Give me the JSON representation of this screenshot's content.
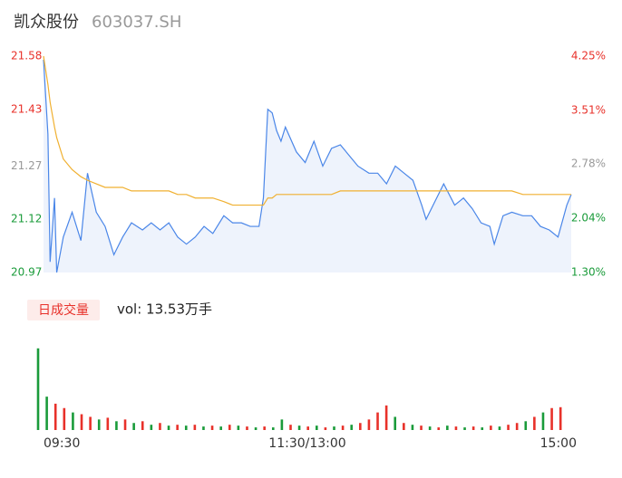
{
  "chart_data": [
    {
      "type": "line",
      "title": "凯众股份",
      "subtitle": "603037.SH",
      "x": [
        0,
        2,
        3,
        5,
        6,
        9,
        13,
        17,
        20,
        24,
        28,
        32,
        36,
        40,
        45,
        49,
        53,
        57,
        61,
        65,
        69,
        73,
        77,
        82,
        86,
        90,
        94,
        98,
        100,
        102,
        104,
        106,
        108,
        110,
        115,
        119,
        123,
        127,
        131,
        135,
        139,
        143,
        148,
        152,
        156,
        160,
        164,
        168,
        172,
        174,
        178,
        182,
        187,
        191,
        195,
        199,
        203,
        205,
        209,
        213,
        218,
        222,
        226,
        230,
        234,
        238,
        240
      ],
      "xlim": [
        0,
        240
      ],
      "series": [
        {
          "name": "price",
          "color": "#4a86e8",
          "values": [
            21.57,
            21.36,
            21.0,
            21.18,
            20.97,
            21.07,
            21.14,
            21.06,
            21.25,
            21.14,
            21.1,
            21.02,
            21.07,
            21.11,
            21.09,
            21.11,
            21.09,
            21.11,
            21.07,
            21.05,
            21.07,
            21.1,
            21.08,
            21.13,
            21.11,
            21.11,
            21.1,
            21.1,
            21.18,
            21.43,
            21.42,
            21.37,
            21.34,
            21.38,
            21.31,
            21.28,
            21.34,
            21.27,
            21.32,
            21.33,
            21.3,
            21.27,
            21.25,
            21.25,
            21.22,
            21.27,
            21.25,
            21.23,
            21.16,
            21.12,
            21.17,
            21.22,
            21.16,
            21.18,
            21.15,
            21.11,
            21.1,
            21.05,
            21.13,
            21.14,
            21.13,
            21.13,
            21.1,
            21.09,
            21.07,
            21.16,
            21.19
          ]
        },
        {
          "name": "average",
          "color": "#f0b030",
          "values": [
            21.58,
            21.5,
            21.45,
            21.38,
            21.35,
            21.29,
            21.26,
            21.24,
            21.23,
            21.22,
            21.21,
            21.21,
            21.21,
            21.2,
            21.2,
            21.2,
            21.2,
            21.2,
            21.19,
            21.19,
            21.18,
            21.18,
            21.18,
            21.17,
            21.16,
            21.16,
            21.16,
            21.16,
            21.16,
            21.18,
            21.18,
            21.19,
            21.19,
            21.19,
            21.19,
            21.19,
            21.19,
            21.19,
            21.19,
            21.2,
            21.2,
            21.2,
            21.2,
            21.2,
            21.2,
            21.2,
            21.2,
            21.2,
            21.2,
            21.2,
            21.2,
            21.2,
            21.2,
            21.2,
            21.2,
            21.2,
            21.2,
            21.2,
            21.2,
            21.2,
            21.19,
            21.19,
            21.19,
            21.19,
            21.19,
            21.19,
            21.19
          ]
        }
      ],
      "ylim": [
        20.97,
        21.58
      ],
      "yticks": [
        21.58,
        21.43,
        21.27,
        21.12,
        20.97
      ],
      "y2lim": [
        1.3,
        4.25
      ],
      "y2ticks": [
        {
          "value": 4.25,
          "label": "4.25%"
        },
        {
          "value": 3.51,
          "label": "3.51%"
        },
        {
          "value": 2.78,
          "label": "2.78%"
        },
        {
          "value": 2.04,
          "label": "2.04%"
        },
        {
          "value": 1.3,
          "label": "1.30%"
        }
      ],
      "up_color": "#e8312a",
      "down_color": "#1a9b3a",
      "flat_color": "#999999",
      "area_color": "#eef3fc"
    },
    {
      "type": "bar",
      "title": "日成交量",
      "subtitle": "vol: 13.53万手",
      "x": [
        0,
        4,
        8,
        12,
        16,
        20,
        24,
        28,
        32,
        36,
        40,
        44,
        48,
        52,
        56,
        60,
        64,
        68,
        72,
        76,
        80,
        84,
        88,
        92,
        96,
        100,
        104,
        108,
        112,
        116,
        120,
        124,
        128,
        132,
        136,
        140,
        144,
        148,
        152,
        156,
        160,
        164,
        168,
        172,
        176,
        180,
        184,
        188,
        192,
        196,
        200,
        204,
        208,
        212,
        216,
        220,
        224,
        228,
        232,
        236,
        240
      ],
      "xticks": [
        {
          "value": 0,
          "label": "09:30"
        },
        {
          "value": 120,
          "label": "11:30/13:00"
        },
        {
          "value": 240,
          "label": "15:00"
        }
      ],
      "xlim": [
        0,
        240
      ],
      "ylim": [
        0,
        100
      ],
      "values": [
        93,
        38,
        30,
        25,
        20,
        18,
        15,
        12,
        14,
        10,
        12,
        8,
        10,
        6,
        8,
        5,
        6,
        5,
        6,
        4,
        5,
        4,
        6,
        5,
        4,
        3,
        4,
        3,
        12,
        6,
        5,
        4,
        5,
        3,
        4,
        5,
        6,
        8,
        12,
        20,
        28,
        15,
        8,
        6,
        5,
        4,
        3,
        5,
        4,
        3,
        4,
        3,
        5,
        4,
        6,
        8,
        10,
        15,
        20,
        25,
        26
      ],
      "colors": [
        "#1a9b3a",
        "#1a9b3a",
        "#e8312a",
        "#e8312a",
        "#1a9b3a",
        "#e8312a",
        "#e8312a",
        "#1a9b3a",
        "#e8312a",
        "#1a9b3a",
        "#e8312a",
        "#1a9b3a",
        "#e8312a",
        "#1a9b3a",
        "#e8312a",
        "#1a9b3a",
        "#e8312a",
        "#1a9b3a",
        "#e8312a",
        "#1a9b3a",
        "#e8312a",
        "#1a9b3a",
        "#e8312a",
        "#1a9b3a",
        "#e8312a",
        "#1a9b3a",
        "#e8312a",
        "#1a9b3a",
        "#1a9b3a",
        "#e8312a",
        "#1a9b3a",
        "#e8312a",
        "#1a9b3a",
        "#e8312a",
        "#1a9b3a",
        "#e8312a",
        "#1a9b3a",
        "#e8312a",
        "#e8312a",
        "#e8312a",
        "#e8312a",
        "#1a9b3a",
        "#e8312a",
        "#1a9b3a",
        "#e8312a",
        "#1a9b3a",
        "#e8312a",
        "#1a9b3a",
        "#e8312a",
        "#1a9b3a",
        "#e8312a",
        "#1a9b3a",
        "#e8312a",
        "#1a9b3a",
        "#e8312a",
        "#e8312a",
        "#1a9b3a",
        "#e8312a",
        "#1a9b3a",
        "#e8312a",
        "#e8312a"
      ]
    }
  ]
}
